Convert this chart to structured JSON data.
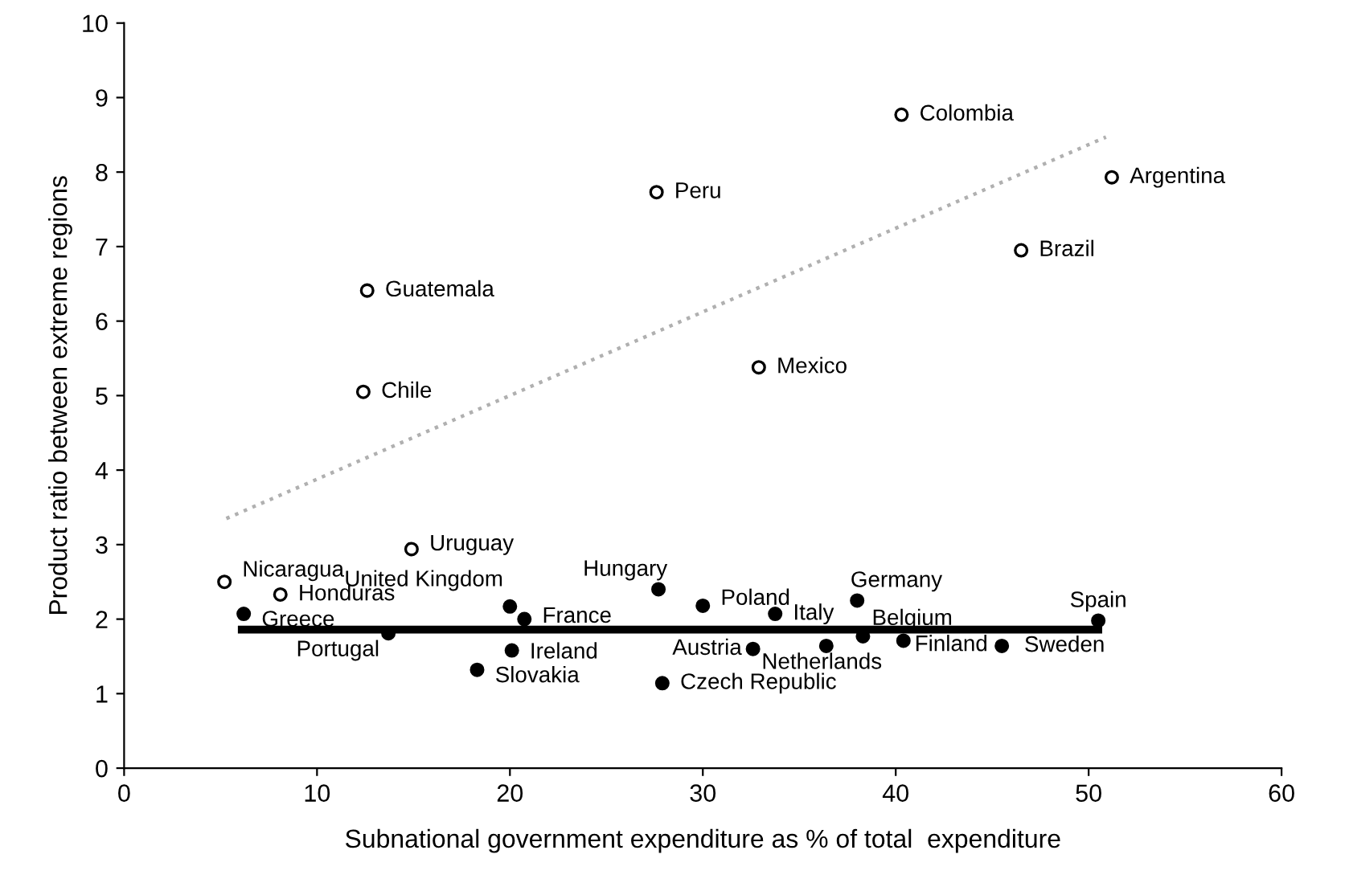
{
  "chart_data": {
    "type": "scatter",
    "xlabel": "Subnational government expenditure as % of total  expenditure",
    "ylabel": "Product ratio between extreme regions",
    "xlim": [
      0,
      60
    ],
    "ylim": [
      0,
      10
    ],
    "xticks": [
      0,
      10,
      20,
      30,
      40,
      50,
      60
    ],
    "yticks": [
      0,
      1,
      2,
      3,
      4,
      5,
      6,
      7,
      8,
      9,
      10
    ],
    "grid": false,
    "legend": false,
    "series": [
      {
        "marker": "circle",
        "color": "#000000",
        "x": [
          40.3,
          51.2,
          27.6,
          46.5,
          12.6,
          32.9,
          12.4,
          14.9,
          5.2,
          8.1
        ],
        "values": [
          8.77,
          7.93,
          7.73,
          6.95,
          6.41,
          5.38,
          5.05,
          2.94,
          2.5,
          2.33
        ]
      },
      {
        "marker": "circle",
        "color": "#000000",
        "x": [
          6.2,
          20.0,
          20.75,
          27.7,
          30.0,
          38.0,
          33.75,
          50.5,
          13.7,
          20.1,
          18.3,
          32.6,
          38.3,
          36.4,
          40.4,
          45.5,
          27.9
        ],
        "values": [
          2.07,
          2.17,
          2.0,
          2.4,
          2.18,
          2.25,
          2.07,
          1.98,
          1.81,
          1.58,
          1.32,
          1.6,
          1.77,
          1.64,
          1.71,
          1.64,
          1.14
        ]
      },
      {
        "type": "line",
        "marker": "none",
        "color": "#b0b0b0",
        "line_style": "dotted",
        "x": [
          5.3,
          50.9
        ],
        "values": [
          3.35,
          8.47
        ]
      },
      {
        "type": "line",
        "marker": "none",
        "color": "#000000",
        "line_style": "solid",
        "x": [
          6.1,
          50.5
        ],
        "values": [
          1.86,
          1.86
        ]
      }
    ],
    "annotations": [
      {
        "text": "Colombia",
        "x": 40.3,
        "y": 8.77
      },
      {
        "text": "Argentina",
        "x": 51.2,
        "y": 7.93
      },
      {
        "text": "Peru",
        "x": 27.6,
        "y": 7.73
      },
      {
        "text": "Brazil",
        "x": 46.5,
        "y": 6.95
      },
      {
        "text": "Guatemala",
        "x": 12.6,
        "y": 6.41
      },
      {
        "text": "Mexico",
        "x": 32.9,
        "y": 5.38
      },
      {
        "text": "Chile",
        "x": 12.4,
        "y": 5.05
      },
      {
        "text": "Uruguay",
        "x": 14.9,
        "y": 2.94
      },
      {
        "text": "Nicaragua",
        "x": 5.2,
        "y": 2.5
      },
      {
        "text": "Honduras",
        "x": 8.1,
        "y": 2.33
      },
      {
        "text": "Greece",
        "x": 6.2,
        "y": 2.07
      },
      {
        "text": "United Kingdom",
        "x": 20.0,
        "y": 2.17
      },
      {
        "text": "France",
        "x": 20.75,
        "y": 2.0
      },
      {
        "text": "Hungary",
        "x": 27.7,
        "y": 2.4
      },
      {
        "text": "Poland",
        "x": 30.0,
        "y": 2.18
      },
      {
        "text": "Germany",
        "x": 38.0,
        "y": 2.25
      },
      {
        "text": "Italy",
        "x": 33.75,
        "y": 2.07
      },
      {
        "text": "Spain",
        "x": 50.5,
        "y": 1.98
      },
      {
        "text": "Portugal",
        "x": 13.7,
        "y": 1.81
      },
      {
        "text": "Ireland",
        "x": 20.1,
        "y": 1.58
      },
      {
        "text": "Slovakia",
        "x": 18.3,
        "y": 1.32
      },
      {
        "text": "Austria",
        "x": 32.6,
        "y": 1.6
      },
      {
        "text": "Belgium",
        "x": 38.3,
        "y": 1.77
      },
      {
        "text": "Netherlands",
        "x": 36.4,
        "y": 1.64
      },
      {
        "text": "Finland",
        "x": 40.4,
        "y": 1.71
      },
      {
        "text": "Sweden",
        "x": 45.5,
        "y": 1.64
      },
      {
        "text": "Czech Republic",
        "x": 27.9,
        "y": 1.14
      }
    ]
  }
}
